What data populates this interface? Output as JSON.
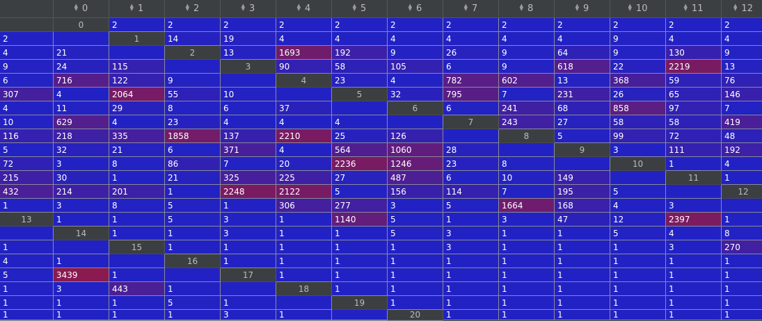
{
  "columns": [
    "0",
    "1",
    "2",
    "3",
    "4",
    "5",
    "6",
    "7",
    "8",
    "9",
    "10",
    "11",
    "12"
  ],
  "row_labels": [
    "0",
    "1",
    "2",
    "3",
    "4",
    "5",
    "6",
    "7",
    "8",
    "9",
    "10",
    "11",
    "12",
    "13",
    "14",
    "15",
    "16",
    "17",
    "18",
    "19",
    "20"
  ],
  "rows": [
    [
      2,
      2,
      2,
      2,
      2,
      2,
      2,
      2,
      2,
      2,
      2,
      2,
      2
    ],
    [
      14,
      19,
      4,
      4,
      4,
      4,
      4,
      4,
      9,
      4,
      4,
      4,
      21
    ],
    [
      13,
      1693,
      192,
      9,
      26,
      9,
      64,
      9,
      130,
      9,
      9,
      24,
      115
    ],
    [
      90,
      58,
      105,
      6,
      9,
      618,
      22,
      2219,
      13,
      6,
      716,
      122,
      9
    ],
    [
      23,
      4,
      782,
      602,
      13,
      368,
      59,
      76,
      307,
      4,
      2064,
      55,
      10
    ],
    [
      32,
      795,
      7,
      231,
      26,
      65,
      146,
      4,
      11,
      29,
      8,
      6,
      37
    ],
    [
      6,
      241,
      68,
      858,
      97,
      7,
      10,
      629,
      4,
      23,
      4,
      4,
      4
    ],
    [
      243,
      27,
      58,
      58,
      419,
      116,
      218,
      335,
      1858,
      137,
      2210,
      25,
      126
    ],
    [
      5,
      99,
      72,
      48,
      5,
      32,
      21,
      6,
      371,
      4,
      564,
      1060,
      28
    ],
    [
      3,
      111,
      192,
      72,
      3,
      8,
      86,
      7,
      20,
      2236,
      1246,
      23,
      8
    ],
    [
      1,
      4,
      215,
      30,
      1,
      21,
      325,
      225,
      27,
      487,
      6,
      10,
      149
    ],
    [
      1,
      432,
      214,
      201,
      1,
      2248,
      2122,
      5,
      156,
      114,
      7,
      195,
      5
    ],
    [
      1,
      3,
      8,
      5,
      1,
      306,
      277,
      3,
      5,
      1664,
      168,
      4,
      3
    ],
    [
      1,
      1,
      5,
      3,
      1,
      1140,
      5,
      1,
      3,
      47,
      12,
      2397,
      1
    ],
    [
      1,
      1,
      3,
      1,
      1,
      5,
      3,
      1,
      1,
      5,
      4,
      8,
      1
    ],
    [
      1,
      1,
      1,
      1,
      1,
      3,
      1,
      1,
      1,
      3,
      270,
      4,
      1
    ],
    [
      1,
      1,
      1,
      1,
      1,
      1,
      1,
      1,
      1,
      1,
      5,
      3439,
      1
    ],
    [
      1,
      1,
      1,
      1,
      1,
      1,
      1,
      1,
      1,
      1,
      3,
      443,
      1
    ],
    [
      1,
      1,
      1,
      1,
      1,
      1,
      1,
      1,
      1,
      1,
      1,
      5,
      1
    ],
    [
      1,
      1,
      1,
      1,
      1,
      1,
      1,
      1,
      1,
      1,
      1,
      3,
      1
    ],
    [
      1,
      1,
      1,
      1,
      1,
      1,
      1,
      1,
      1,
      1,
      1,
      1,
      1
    ]
  ],
  "colors": {
    "low": "#2222c4",
    "high": "#8a1a50",
    "header_bg": "#3c3f41",
    "header_text": "#bbbbbb",
    "cell_text": "#ffffff"
  },
  "heat_max": 3439,
  "icons": {
    "sort": "sort-icon"
  }
}
